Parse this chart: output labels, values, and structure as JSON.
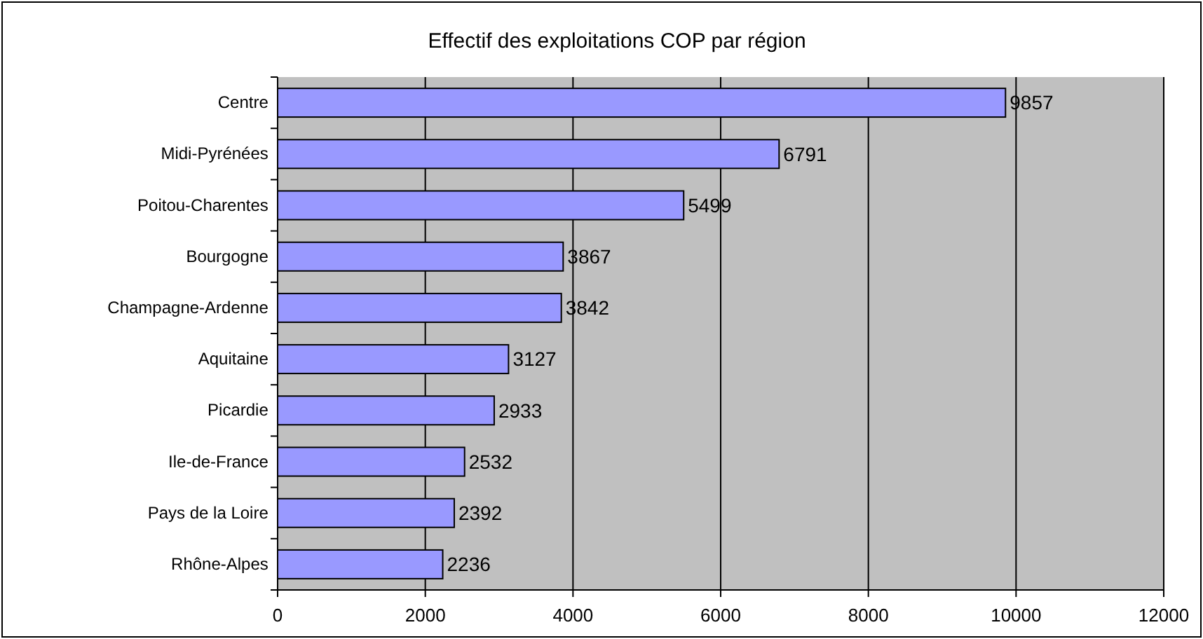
{
  "chart_data": {
    "type": "bar",
    "orientation": "horizontal",
    "title": "Effectif des exploitations COP par région",
    "categories": [
      "Centre",
      "Midi-Pyrénées",
      "Poitou-Charentes",
      "Bourgogne",
      "Champagne-Ardenne",
      "Aquitaine",
      "Picardie",
      "Ile-de-France",
      "Pays de la Loire",
      "Rhône-Alpes"
    ],
    "values": [
      9857,
      6791,
      5499,
      3867,
      3842,
      3127,
      2933,
      2532,
      2392,
      2236
    ],
    "color": "#9999ff",
    "xlim": [
      0,
      12000
    ],
    "xticks": [
      0,
      2000,
      4000,
      6000,
      8000,
      10000,
      12000
    ],
    "grid": "x",
    "data_labels": true
  }
}
